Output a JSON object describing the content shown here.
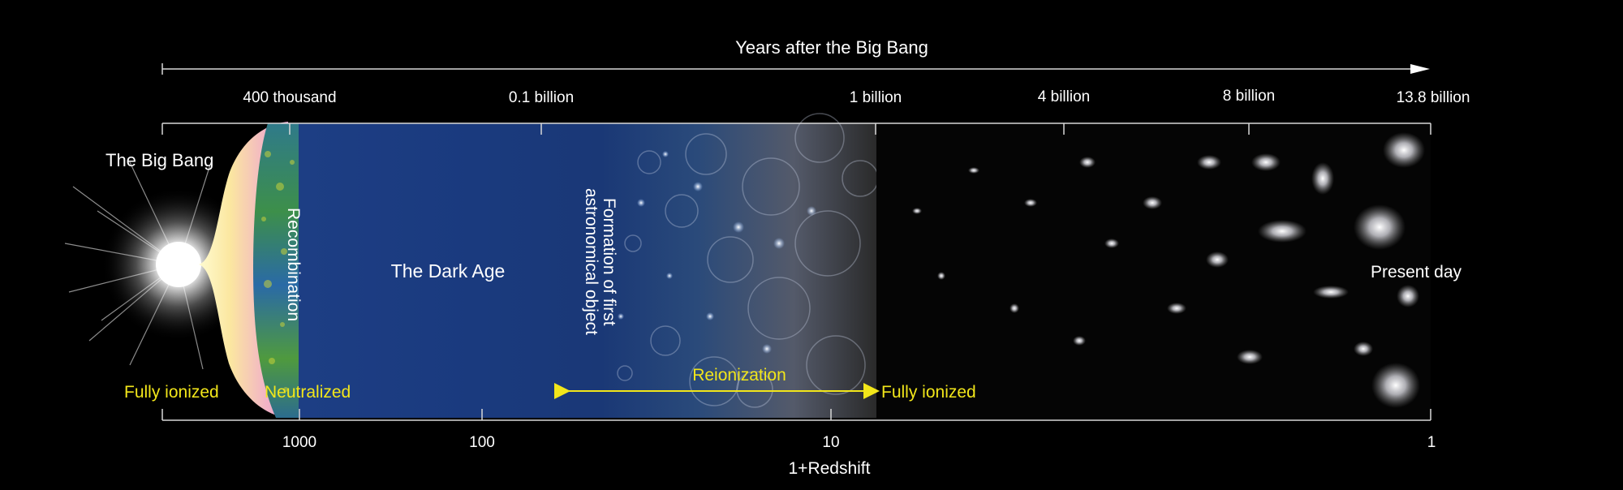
{
  "top_axis": {
    "title": "Years after the Big Bang",
    "ticks": [
      {
        "label": "400 thousand"
      },
      {
        "label": "0.1 billion"
      },
      {
        "label": "1 billion"
      },
      {
        "label": "4 billion"
      },
      {
        "label": "8 billion"
      },
      {
        "label": "13.8 billion"
      }
    ]
  },
  "bottom_axis": {
    "title": "1+Redshift",
    "ticks": [
      {
        "label": "1000"
      },
      {
        "label": "100"
      },
      {
        "label": "10"
      },
      {
        "label": "1"
      }
    ]
  },
  "labels": {
    "big_bang": "The Big Bang",
    "recombination": "Recombination",
    "dark_age": "The Dark Age",
    "first_objects_line1": "Formation of first",
    "first_objects_line2": "astronomical object",
    "reionization": "Reionization",
    "present_day": "Present day",
    "fully_ionized_left": "Fully ionized",
    "neutralized": "Neutralized",
    "fully_ionized_right": "Fully ionized"
  },
  "colors": {
    "dark_age_blue": "#1a3a7e",
    "annotation_yellow": "#f2e61a",
    "axis_line": "#d8d8d8",
    "text": "#ffffff"
  }
}
